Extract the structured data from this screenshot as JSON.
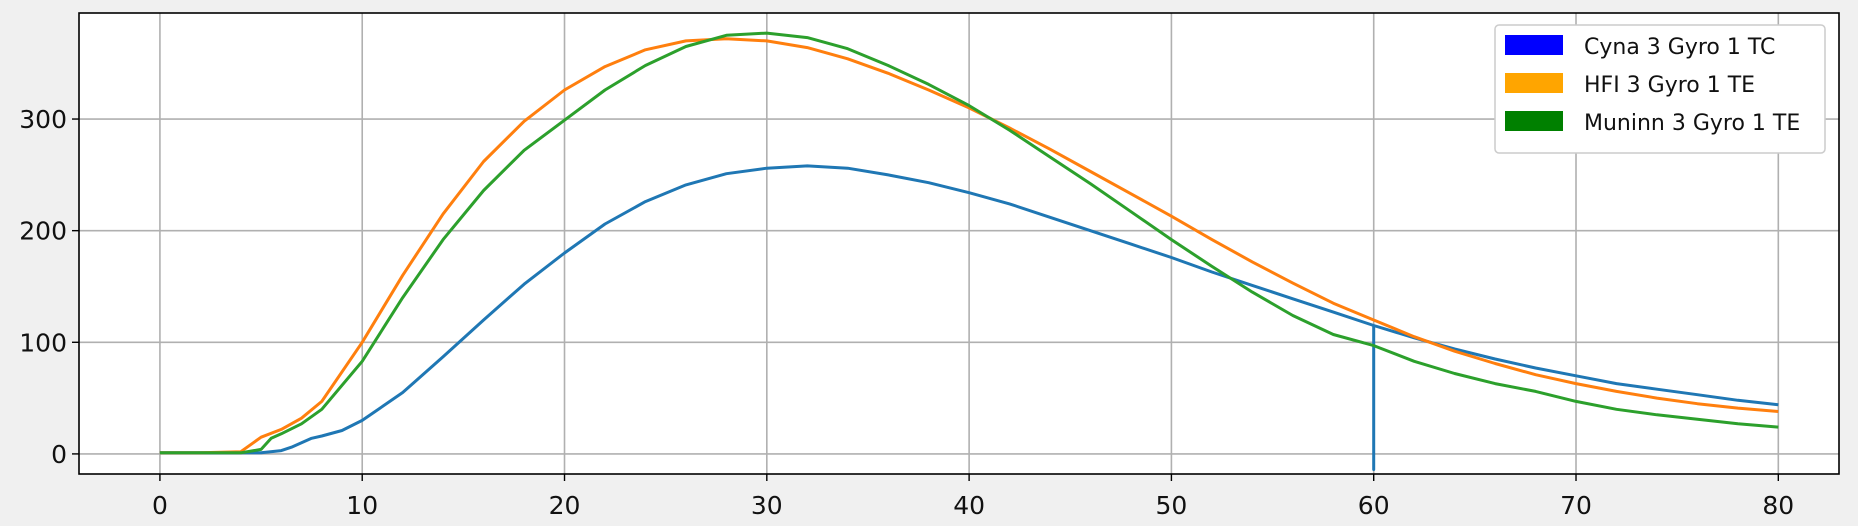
{
  "chart_data": {
    "type": "line",
    "title": "",
    "xlabel": "",
    "ylabel": "",
    "xlim": [
      -4,
      83
    ],
    "ylim": [
      -18,
      395
    ],
    "x_ticks": [
      0,
      10,
      20,
      30,
      40,
      50,
      60,
      70,
      80
    ],
    "y_ticks": [
      0,
      100,
      200,
      300
    ],
    "x_tick_labels": [
      "0",
      "10",
      "20",
      "30",
      "40",
      "50",
      "60",
      "70",
      "80"
    ],
    "y_tick_labels": [
      "0",
      "100",
      "200",
      "300"
    ],
    "grid": true,
    "legend_position": "top-right",
    "legend": [
      {
        "label": "Cyna 3 Gyro 1 TC",
        "color": "#0000ff"
      },
      {
        "label": "HFI 3 Gyro 1 TE",
        "color": "#ffa500"
      },
      {
        "label": "Muninn 3 Gyro 1 TE",
        "color": "#008000"
      }
    ],
    "series": [
      {
        "color": "#1f77b4",
        "x": [
          0,
          2,
          4,
          5,
          6,
          6.5,
          7,
          7.5,
          8,
          9,
          10,
          12,
          14,
          16,
          18,
          20,
          22,
          24,
          26,
          28,
          30,
          32,
          34,
          36,
          38,
          40,
          42,
          44,
          46,
          48,
          50,
          52,
          54,
          56,
          58,
          60,
          60,
          60,
          62,
          64,
          66,
          68,
          70,
          72,
          74,
          76,
          78,
          80
        ],
        "y": [
          1,
          1,
          1,
          1,
          3,
          6,
          10,
          14,
          16,
          21,
          30,
          55,
          87,
          120,
          152,
          180,
          206,
          226,
          241,
          251,
          256,
          258,
          256,
          250,
          243,
          234,
          224,
          212,
          200,
          188,
          176,
          163,
          151,
          139,
          127,
          115,
          -14,
          115,
          104,
          94,
          85,
          77,
          70,
          63,
          58,
          53,
          48,
          44
        ]
      },
      {
        "color": "#ff7f0e",
        "x": [
          0,
          2,
          4,
          5,
          6,
          7,
          8,
          10,
          12,
          14,
          16,
          18,
          20,
          22,
          24,
          26,
          28,
          30,
          32,
          34,
          36,
          38,
          40,
          42,
          44,
          46,
          48,
          50,
          52,
          54,
          56,
          58,
          60,
          62,
          64,
          66,
          68,
          70,
          72,
          74,
          76,
          78,
          80
        ],
        "y": [
          1,
          1,
          2,
          15,
          22,
          32,
          47,
          100,
          160,
          215,
          262,
          298,
          326,
          347,
          362,
          370,
          372,
          370,
          364,
          354,
          341,
          326,
          310,
          292,
          273,
          253,
          233,
          213,
          192,
          172,
          153,
          135,
          120,
          105,
          92,
          81,
          71,
          63,
          56,
          50,
          45,
          41,
          38
        ]
      },
      {
        "color": "#2ca02c",
        "x": [
          0,
          2,
          4,
          5,
          5.5,
          6,
          7,
          8,
          10,
          12,
          14,
          16,
          18,
          20,
          22,
          24,
          26,
          28,
          30,
          32,
          34,
          36,
          38,
          40,
          42,
          44,
          46,
          48,
          50,
          52,
          54,
          56,
          58,
          60,
          62,
          64,
          66,
          68,
          70,
          72,
          74,
          76,
          78,
          80
        ],
        "y": [
          1,
          1,
          1,
          4,
          14,
          18,
          27,
          40,
          83,
          140,
          192,
          236,
          272,
          299,
          326,
          348,
          365,
          375,
          377,
          373,
          363,
          348,
          331,
          312,
          290,
          266,
          242,
          217,
          192,
          168,
          145,
          124,
          107,
          97,
          83,
          72,
          63,
          56,
          47,
          40,
          35,
          31,
          27,
          24
        ]
      }
    ]
  }
}
